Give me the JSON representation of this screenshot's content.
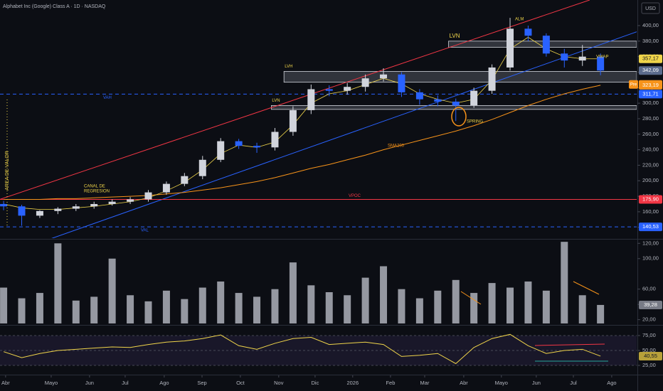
{
  "chart_data": [
    {
      "type": "candlestick",
      "title": "Alphabet Inc (Google) Class A · 1D · NASDAQ",
      "currency": "USD",
      "xlim": [
        -0.2,
        35.0
      ],
      "ylim": [
        126,
        433
      ],
      "yticks": [
        {
          "value": 140,
          "label": "140,00"
        },
        {
          "value": 160,
          "label": "160,00"
        },
        {
          "value": 180,
          "label": "180,00"
        },
        {
          "value": 200,
          "label": "200,00"
        },
        {
          "value": 220,
          "label": "220,00"
        },
        {
          "value": 240,
          "label": "240,00"
        },
        {
          "value": 260,
          "label": "260,00"
        },
        {
          "value": 280,
          "label": "280,00"
        },
        {
          "value": 300,
          "label": "300,00"
        },
        {
          "value": 320,
          "label": "320,00"
        },
        {
          "value": 340,
          "label": "340,00"
        },
        {
          "value": 360,
          "label": "360,00"
        },
        {
          "value": 380,
          "label": "380,00"
        },
        {
          "value": 400,
          "label": "400,00"
        }
      ],
      "up_color": "#d1d4dc",
      "down_color": "#2962ff",
      "open": [
        170,
        167,
        155,
        161,
        164,
        167,
        170,
        173,
        176,
        185,
        196,
        206,
        227,
        251,
        245,
        243,
        263,
        291,
        318,
        316,
        321,
        332,
        337,
        314,
        305,
        302,
        297,
        316,
        346,
        396,
        387,
        364,
        355,
        360
      ],
      "high": [
        174,
        169,
        162,
        166,
        170,
        173,
        176,
        179,
        188,
        199,
        210,
        232,
        255,
        254,
        249,
        268,
        296,
        324,
        323,
        326,
        337,
        345,
        340,
        318,
        310,
        306,
        320,
        350,
        410,
        400,
        390,
        370,
        375,
        364
      ],
      "low": [
        162,
        142,
        152,
        157,
        161,
        164,
        168,
        170,
        173,
        182,
        193,
        202,
        224,
        241,
        236,
        239,
        258,
        286,
        309,
        311,
        315,
        328,
        308,
        298,
        296,
        277,
        294,
        312,
        342,
        380,
        360,
        346,
        348,
        336
      ],
      "close": [
        167,
        155,
        161,
        164,
        167,
        170,
        173,
        176,
        185,
        196,
        206,
        227,
        251,
        245,
        243,
        263,
        291,
        318,
        316,
        321,
        332,
        337,
        314,
        305,
        302,
        297,
        316,
        346,
        396,
        387,
        364,
        355,
        360,
        342.09
      ],
      "overlays": [
        {
          "name": "SMA200",
          "color": "#f7931a",
          "values": [
            176,
            176,
            176,
            177,
            177,
            178,
            179,
            180,
            181,
            183,
            185,
            188,
            191,
            195,
            199,
            204,
            210,
            216,
            221,
            227,
            233,
            240,
            246,
            252,
            258,
            264,
            271,
            279,
            288,
            297,
            305,
            312,
            318,
            323.19
          ]
        },
        {
          "name": "VWAP",
          "color": "#f0d54a",
          "values": [
            170,
            165,
            163,
            163,
            165,
            167,
            170,
            173,
            178,
            187,
            198,
            214,
            235,
            246,
            243,
            250,
            272,
            300,
            312,
            316,
            324,
            332,
            325,
            312,
            305,
            300,
            305,
            330,
            370,
            385,
            370,
            360,
            357.17,
            357.17
          ]
        }
      ],
      "levels": [
        {
          "label": "VAH",
          "value": 311.71,
          "color": "#2962ff",
          "dashed": true
        },
        {
          "label": "VPOC",
          "value": 175.9,
          "color": "#f23645",
          "dashed": false
        },
        {
          "label": "VAL",
          "value": 140.53,
          "color": "#2962ff",
          "dashed": true
        }
      ],
      "zones": [
        {
          "label": "LVH",
          "start": 15.5,
          "range": [
            327,
            341
          ]
        },
        {
          "label": "LVN",
          "start": 24.6,
          "range": [
            372,
            380
          ]
        },
        {
          "label": "LVN",
          "start": 14.8,
          "range": [
            292,
            297
          ]
        }
      ],
      "trendlines": [
        {
          "color": "#f23645",
          "points": [
            [
              -0.2,
              176
            ],
            [
              32.4,
              433
            ]
          ]
        },
        {
          "color": "#2962ff",
          "points": [
            [
              1.0,
              112
            ],
            [
              35.0,
              392
            ]
          ]
        }
      ],
      "price_labels": [
        {
          "value": 357.17,
          "label": "357,17",
          "color": "#f0d54a"
        },
        {
          "value": 342.09,
          "label": "342,09",
          "color": "#5b6b8c"
        },
        {
          "value": 324.23,
          "label": "324,23",
          "color": "#f7931a",
          "tag": "Pre"
        },
        {
          "value": 323.19,
          "label": "323,19",
          "color": "#f7931a"
        },
        {
          "value": 311.71,
          "label": "311,71",
          "color": "#2962ff"
        },
        {
          "value": 175.9,
          "label": "175,90",
          "color": "#f23645"
        },
        {
          "value": 140.53,
          "label": "140,53",
          "color": "#2962ff"
        }
      ],
      "annotations": {
        "alm": "ALM",
        "spring": "SPRING",
        "canal_1": "CANAL DE",
        "canal_2": "REGRESION",
        "area": "AREA DE VALOR"
      }
    },
    {
      "type": "bar",
      "xlim": [
        -0.2,
        35.0
      ],
      "ylim": [
        15,
        124
      ],
      "color": "#9598a1",
      "yticks": [
        {
          "value": 20,
          "label": "20,00"
        },
        {
          "value": 40,
          "label": "40,00"
        },
        {
          "value": 60,
          "label": "60,00"
        },
        {
          "value": 100,
          "label": "100,00"
        },
        {
          "value": 120,
          "label": "120,00"
        }
      ],
      "values": [
        62,
        48,
        55,
        120,
        45,
        50,
        100,
        52,
        44,
        58,
        47,
        62,
        70,
        55,
        50,
        60,
        95,
        65,
        56,
        52,
        75,
        90,
        60,
        48,
        58,
        72,
        55,
        68,
        62,
        70,
        58,
        122,
        52,
        39.28
      ],
      "last_label": "39,28"
    },
    {
      "type": "line",
      "xlim": [
        -0.2,
        35.0
      ],
      "ylim": [
        11.9,
        89.3
      ],
      "color": "#f0d54a",
      "yticks": [
        {
          "value": 25,
          "label": "25,00"
        },
        {
          "value": 50,
          "label": "50,00"
        },
        {
          "value": 75,
          "label": "75,00"
        }
      ],
      "values": [
        48,
        38,
        45,
        50,
        52,
        54,
        56,
        55,
        60,
        64,
        66,
        70,
        76,
        58,
        52,
        62,
        70,
        72,
        60,
        62,
        64,
        60,
        40,
        42,
        45,
        28,
        55,
        70,
        77,
        58,
        45,
        50,
        52,
        40.55
      ],
      "last_label": "40,55",
      "xticks": [
        {
          "value": 0.11,
          "label": "Abr"
        },
        {
          "value": 2.63,
          "label": "Mayo"
        },
        {
          "value": 4.75,
          "label": "Jun"
        },
        {
          "value": 6.72,
          "label": "Jul"
        },
        {
          "value": 8.88,
          "label": "Ago"
        },
        {
          "value": 10.97,
          "label": "Sep"
        },
        {
          "value": 13.09,
          "label": "Oct"
        },
        {
          "value": 15.21,
          "label": "Nov"
        },
        {
          "value": 17.22,
          "label": "Dic"
        },
        {
          "value": 19.3,
          "label": "2026"
        },
        {
          "value": 21.39,
          "label": "Feb"
        },
        {
          "value": 23.28,
          "label": "Mar"
        },
        {
          "value": 25.44,
          "label": "Abr"
        },
        {
          "value": 27.52,
          "label": "Mayo"
        },
        {
          "value": 29.45,
          "label": "Jun"
        },
        {
          "value": 31.5,
          "label": "Jul"
        },
        {
          "value": 33.62,
          "label": "Ago"
        }
      ]
    }
  ]
}
